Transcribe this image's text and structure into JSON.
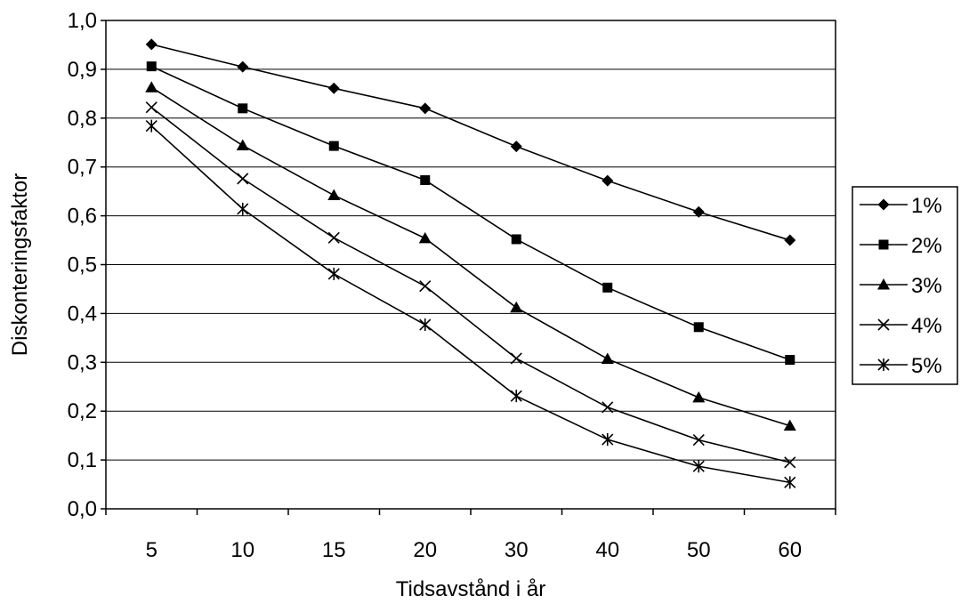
{
  "chart_data": {
    "type": "line",
    "title": "",
    "xlabel": "Tidsavstånd i år",
    "ylabel": "Diskonteringsfaktor",
    "categories": [
      "5",
      "10",
      "15",
      "20",
      "30",
      "40",
      "50",
      "60"
    ],
    "ylim": [
      0,
      1
    ],
    "yticks": [
      "0,0",
      "0,1",
      "0,2",
      "0,3",
      "0,4",
      "0,5",
      "0,6",
      "0,7",
      "0,8",
      "0,9",
      "1,0"
    ],
    "grid": true,
    "legend_position": "right",
    "series": [
      {
        "name": "1%",
        "marker": "diamond",
        "values": [
          0.951,
          0.905,
          0.861,
          0.82,
          0.742,
          0.672,
          0.608,
          0.55
        ]
      },
      {
        "name": "2%",
        "marker": "square",
        "values": [
          0.906,
          0.82,
          0.743,
          0.673,
          0.552,
          0.453,
          0.372,
          0.305
        ]
      },
      {
        "name": "3%",
        "marker": "triangle",
        "values": [
          0.863,
          0.744,
          0.642,
          0.554,
          0.412,
          0.307,
          0.228,
          0.17
        ]
      },
      {
        "name": "4%",
        "marker": "x",
        "values": [
          0.822,
          0.676,
          0.555,
          0.456,
          0.308,
          0.208,
          0.141,
          0.095
        ]
      },
      {
        "name": "5%",
        "marker": "asterisk",
        "values": [
          0.784,
          0.614,
          0.481,
          0.377,
          0.231,
          0.142,
          0.087,
          0.054
        ]
      }
    ]
  }
}
